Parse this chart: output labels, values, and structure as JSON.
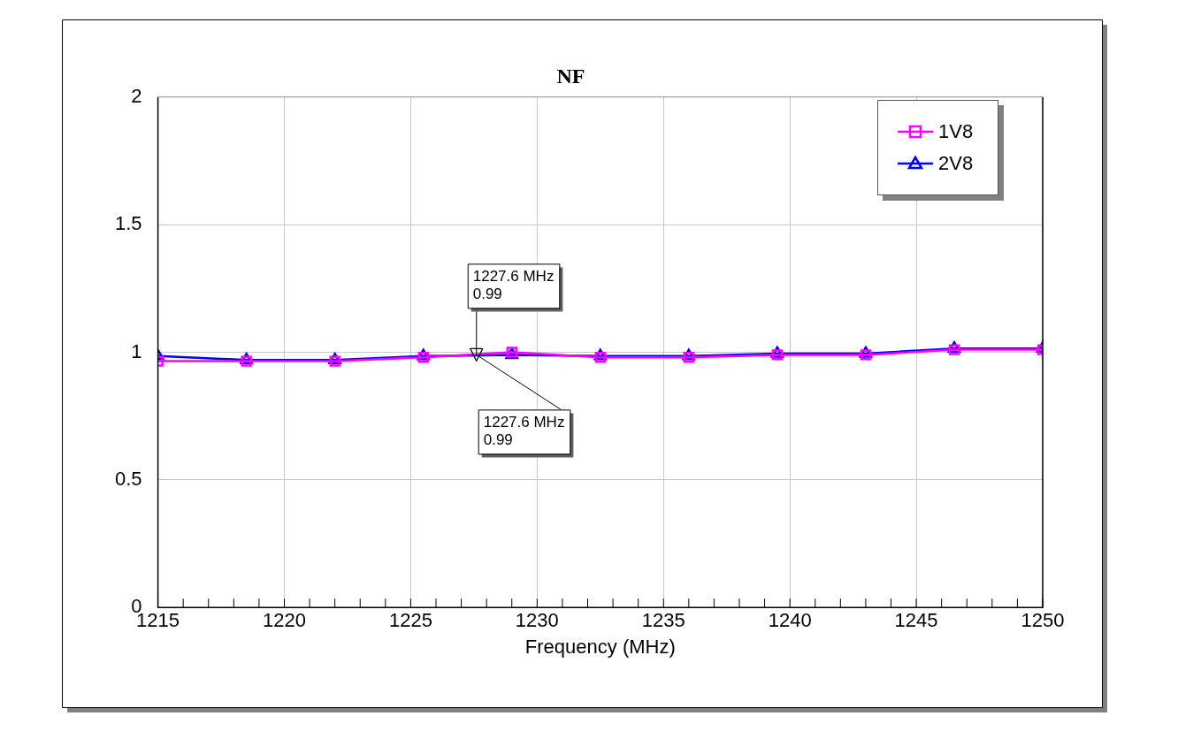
{
  "chart_data": {
    "type": "line",
    "title": "NF",
    "xlabel": "Frequency (MHz)",
    "x": [
      1215,
      1218.5,
      1222,
      1225.5,
      1229,
      1232.5,
      1236,
      1239.5,
      1243,
      1246.5,
      1250
    ],
    "series": [
      {
        "name": "1V8",
        "color": "#ff00ff",
        "marker": "square",
        "values": [
          0.965,
          0.965,
          0.965,
          0.98,
          1.0,
          0.98,
          0.98,
          0.99,
          0.99,
          1.01,
          1.01
        ]
      },
      {
        "name": "2V8",
        "color": "#0000ff",
        "marker": "triangle",
        "values": [
          0.985,
          0.97,
          0.97,
          0.985,
          0.99,
          0.985,
          0.985,
          0.995,
          0.995,
          1.015,
          1.015
        ]
      }
    ],
    "xlim": [
      1215,
      1250
    ],
    "xticks": [
      1215,
      1220,
      1225,
      1230,
      1235,
      1240,
      1245,
      1250
    ],
    "ylim": [
      0,
      2
    ],
    "yticks": [
      0,
      0.5,
      1,
      1.5,
      2
    ],
    "grid": true,
    "legend": "top right",
    "annotations": [
      {
        "text": "1227.6 MHz\n0.99",
        "x": 1227.6,
        "y": 0.99
      },
      {
        "text": "1227.6 MHz\n0.99",
        "x": 1227.6,
        "y": 0.99
      }
    ]
  }
}
